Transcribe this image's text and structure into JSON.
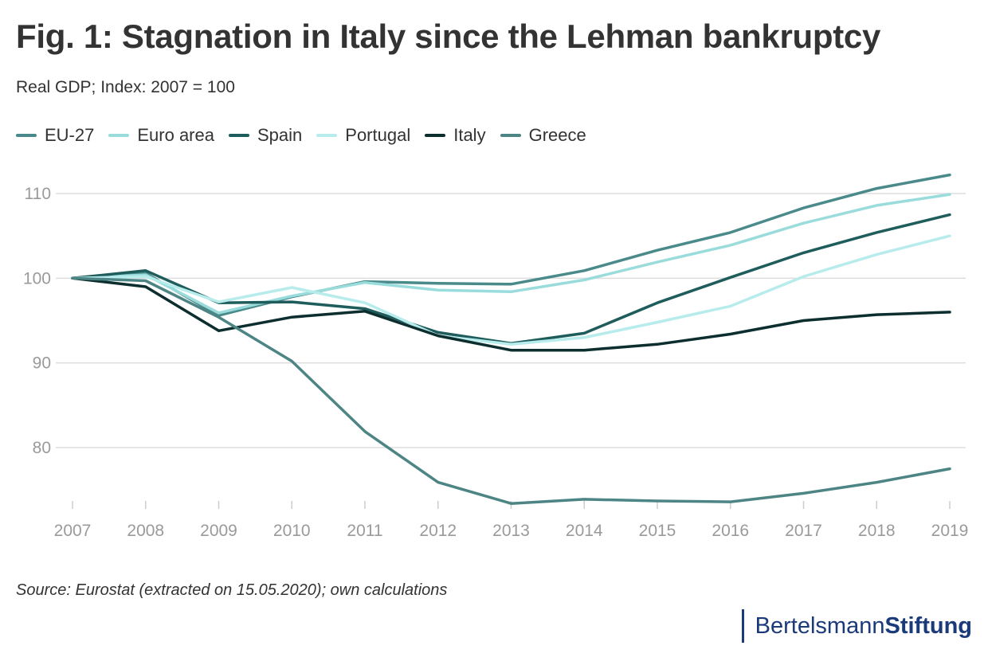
{
  "title": "Fig. 1: Stagnation in Italy since the Lehman bankruptcy",
  "subtitle": "Real GDP; Index: 2007 = 100",
  "source": "Source: Eurostat (extracted on 15.05.2020); own calculations",
  "logo": {
    "part1": "Bertelsmann",
    "part2": "Stiftung",
    "color": "#1b3a7a"
  },
  "chart_data": {
    "type": "line",
    "x": [
      2007,
      2008,
      2009,
      2010,
      2011,
      2012,
      2013,
      2014,
      2015,
      2016,
      2017,
      2018,
      2019
    ],
    "ylim": [
      72,
      115
    ],
    "yticks": [
      80,
      90,
      100,
      110
    ],
    "grid": true,
    "legend_position": "top-left",
    "series": [
      {
        "name": "EU-27",
        "color": "#4a8a8a",
        "values": [
          100,
          100.6,
          95.6,
          97.8,
          99.6,
          99.4,
          99.3,
          100.9,
          103.3,
          105.4,
          108.3,
          110.6,
          112.2
        ]
      },
      {
        "name": "Euro area",
        "color": "#9adcdc",
        "values": [
          100,
          100.4,
          95.9,
          97.9,
          99.5,
          98.6,
          98.4,
          99.8,
          101.9,
          103.9,
          106.5,
          108.6,
          109.9
        ]
      },
      {
        "name": "Spain",
        "color": "#1f5c5c",
        "values": [
          100,
          100.9,
          97.1,
          97.2,
          96.4,
          93.6,
          92.3,
          93.5,
          97.1,
          100.1,
          103.0,
          105.4,
          107.5
        ]
      },
      {
        "name": "Portugal",
        "color": "#b8ecec",
        "values": [
          100,
          100.2,
          97.2,
          98.9,
          97.1,
          93.2,
          92.2,
          93.0,
          94.8,
          96.7,
          100.2,
          102.8,
          105.0
        ]
      },
      {
        "name": "Italy",
        "color": "#0d2e2e",
        "values": [
          100,
          99.0,
          93.8,
          95.4,
          96.1,
          93.2,
          91.5,
          91.5,
          92.2,
          93.4,
          95.0,
          95.7,
          96.0
        ]
      },
      {
        "name": "Greece",
        "color": "#4d8585",
        "values": [
          100,
          99.7,
          95.4,
          90.2,
          81.9,
          75.9,
          73.4,
          73.9,
          73.7,
          73.6,
          74.6,
          75.9,
          77.5
        ]
      }
    ]
  }
}
